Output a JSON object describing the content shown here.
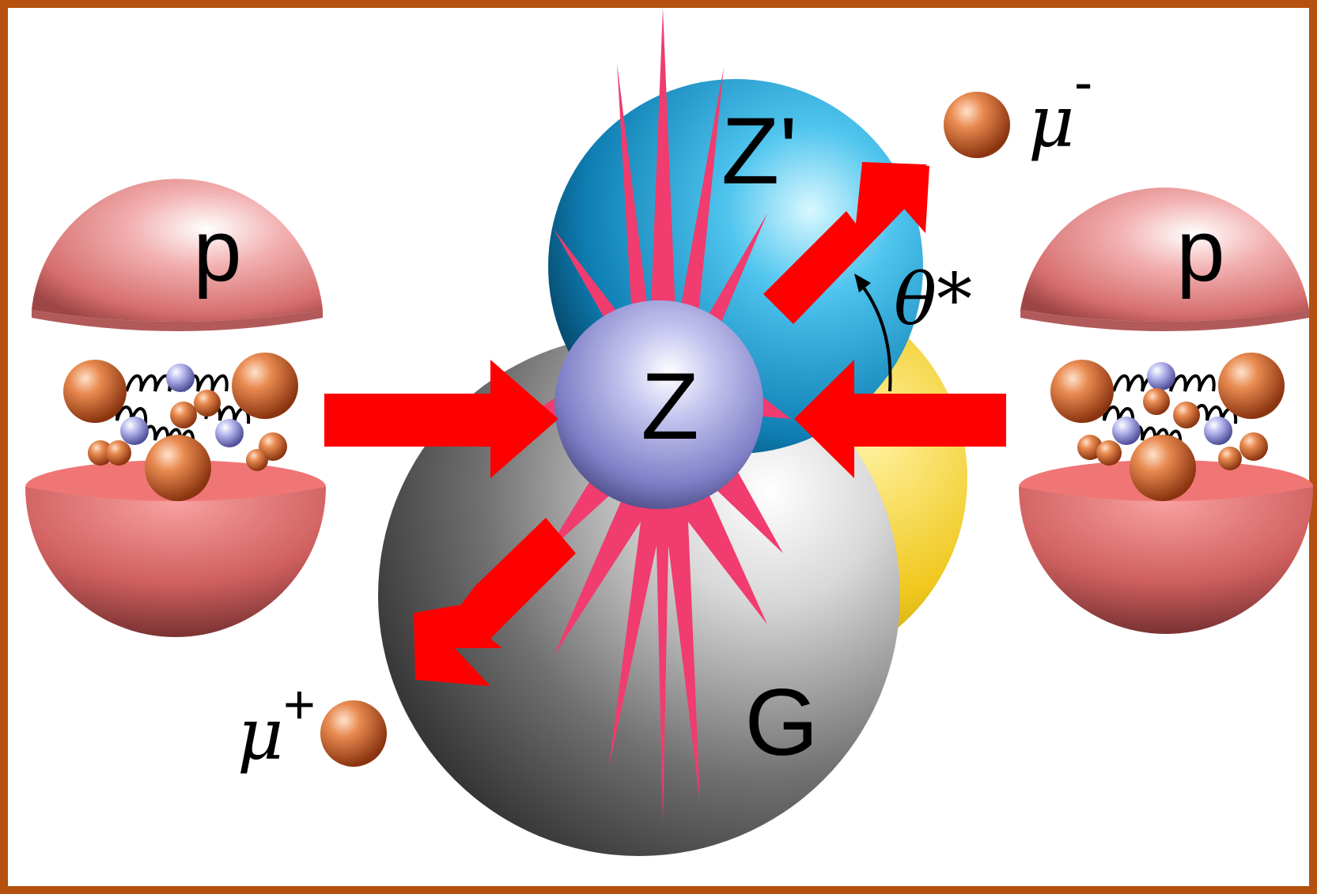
{
  "diagram": {
    "frame_color": "#b5500e",
    "proton_left_label": "p",
    "proton_right_label": "p",
    "boson_z_label": "Z",
    "boson_zprime_label": "Z'",
    "graviton_label": "G",
    "muon_minus_symbol": "μ",
    "muon_minus_charge": "-",
    "muon_plus_symbol": "μ",
    "muon_plus_charge": "+",
    "angle_label": "θ*",
    "colors": {
      "proton": "#e88a8a",
      "quark": "#d4622a",
      "gluon_ball": "#9b9bd8",
      "z_sphere": "#8e8ed0",
      "zprime_sphere": "#1e9fd8",
      "graviton_sphere": "#9a9a9a",
      "yellow_sphere": "#f0c81e",
      "burst": "#f03c6e",
      "arrow": "#ff0000"
    },
    "icons": [
      "proton-sphere",
      "quark-ball",
      "gluon-spring",
      "collision-burst",
      "momentum-arrow"
    ]
  }
}
